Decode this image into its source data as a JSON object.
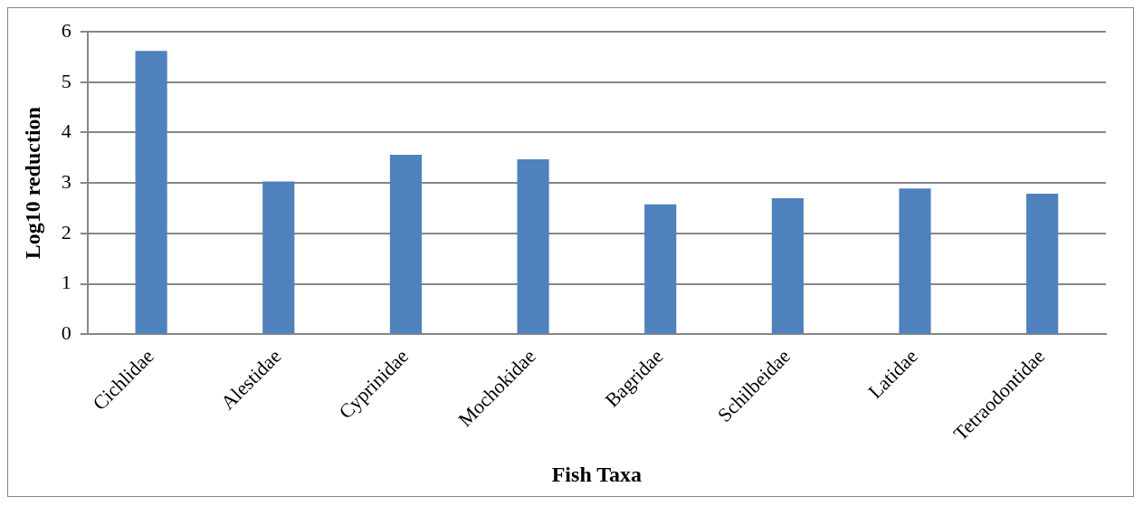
{
  "chart_data": {
    "type": "bar",
    "xlabel": "Fish Taxa",
    "ylabel": "Log10 reduction",
    "categories": [
      "Cichlidae",
      "Alestidae",
      "Cyprinidae",
      "Mochokidae",
      "Bagridae",
      "Schilbeidae",
      "Latidae",
      "Tetraodontidae"
    ],
    "values": [
      5.62,
      3.03,
      3.56,
      3.47,
      2.58,
      2.7,
      2.89,
      2.79
    ],
    "color": "#4f81bd",
    "ylim": [
      0,
      6
    ],
    "yticks": [
      0,
      1,
      2,
      3,
      4,
      5,
      6
    ],
    "grid": "y",
    "legend": false
  }
}
